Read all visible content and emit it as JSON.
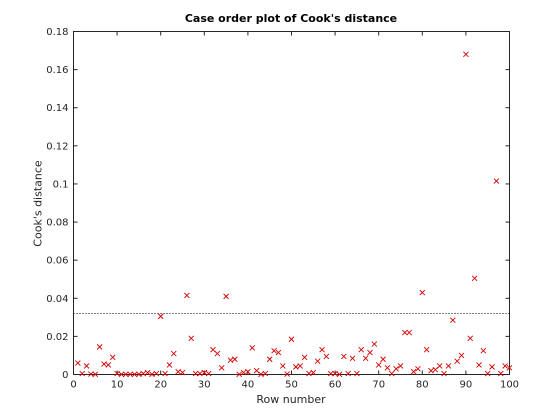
{
  "chart_data": {
    "type": "scatter",
    "title": "Case order plot of Cook's distance",
    "xlabel": "Row number",
    "ylabel": "Cook's distance",
    "xlim": [
      0,
      100
    ],
    "ylim": [
      0,
      0.18
    ],
    "xticks": [
      "0",
      "10",
      "20",
      "30",
      "40",
      "50",
      "60",
      "70",
      "80",
      "90",
      "100"
    ],
    "yticks": [
      "0",
      "0.02",
      "0.04",
      "0.06",
      "0.08",
      "0.1",
      "0.12",
      "0.14",
      "0.16",
      "0.18"
    ],
    "threshold": 0.032,
    "marker": "x",
    "marker_color": "#d40000",
    "grid": false,
    "legend": "none",
    "series": [
      {
        "x": [
          1,
          2,
          3,
          4,
          5,
          6,
          7,
          8,
          9,
          10,
          11,
          12,
          13,
          14,
          15,
          16,
          17,
          18,
          19,
          20,
          21,
          22,
          23,
          24,
          25,
          26,
          27,
          28,
          29,
          30,
          31,
          32,
          33,
          34,
          35,
          36,
          37,
          38,
          39,
          40,
          41,
          42,
          43,
          44,
          45,
          46,
          47,
          48,
          49,
          50,
          51,
          52,
          53,
          54,
          55,
          56,
          57,
          58,
          59,
          60,
          61,
          62,
          63,
          64,
          65,
          66,
          67,
          68,
          69,
          70,
          71,
          72,
          73,
          74,
          75,
          76,
          77,
          78,
          79,
          80,
          81,
          82,
          83,
          84,
          85,
          86,
          87,
          88,
          89,
          90,
          91,
          92,
          93,
          94,
          95,
          96,
          97,
          98,
          99,
          100
        ],
        "y": [
          0.006,
          0.0005,
          0.0045,
          0.0002,
          0.0001,
          0.0145,
          0.0055,
          0.005,
          0.009,
          0.0005,
          0.0001,
          0.0001,
          0.0001,
          0.0001,
          0.0001,
          0.0005,
          0.001,
          0.0001,
          0.0005,
          0.0305,
          0.0005,
          0.005,
          0.011,
          0.0015,
          0.001,
          0.0415,
          0.019,
          0.0005,
          0.0005,
          0.001,
          0.0005,
          0.013,
          0.011,
          0.0035,
          0.041,
          0.0075,
          0.008,
          0.0001,
          0.001,
          0.0015,
          0.014,
          0.002,
          0.0001,
          0.0005,
          0.008,
          0.0125,
          0.0115,
          0.0045,
          0.0002,
          0.0185,
          0.004,
          0.0045,
          0.009,
          0.0005,
          0.001,
          0.007,
          0.013,
          0.0095,
          0.0005,
          0.0005,
          0.0001,
          0.0095,
          0.0005,
          0.0085,
          0.0005,
          0.013,
          0.0085,
          0.0115,
          0.016,
          0.005,
          0.008,
          0.0035,
          0.0005,
          0.003,
          0.0045,
          0.022,
          0.022,
          0.0015,
          0.003,
          0.043,
          0.013,
          0.002,
          0.0025,
          0.0045,
          0.0005,
          0.0045,
          0.0285,
          0.007,
          0.01,
          0.168,
          0.019,
          0.0505,
          0.005,
          0.0125,
          0.0005,
          0.004,
          0.1015,
          0.0005,
          0.0045,
          0.0035
        ]
      }
    ]
  }
}
